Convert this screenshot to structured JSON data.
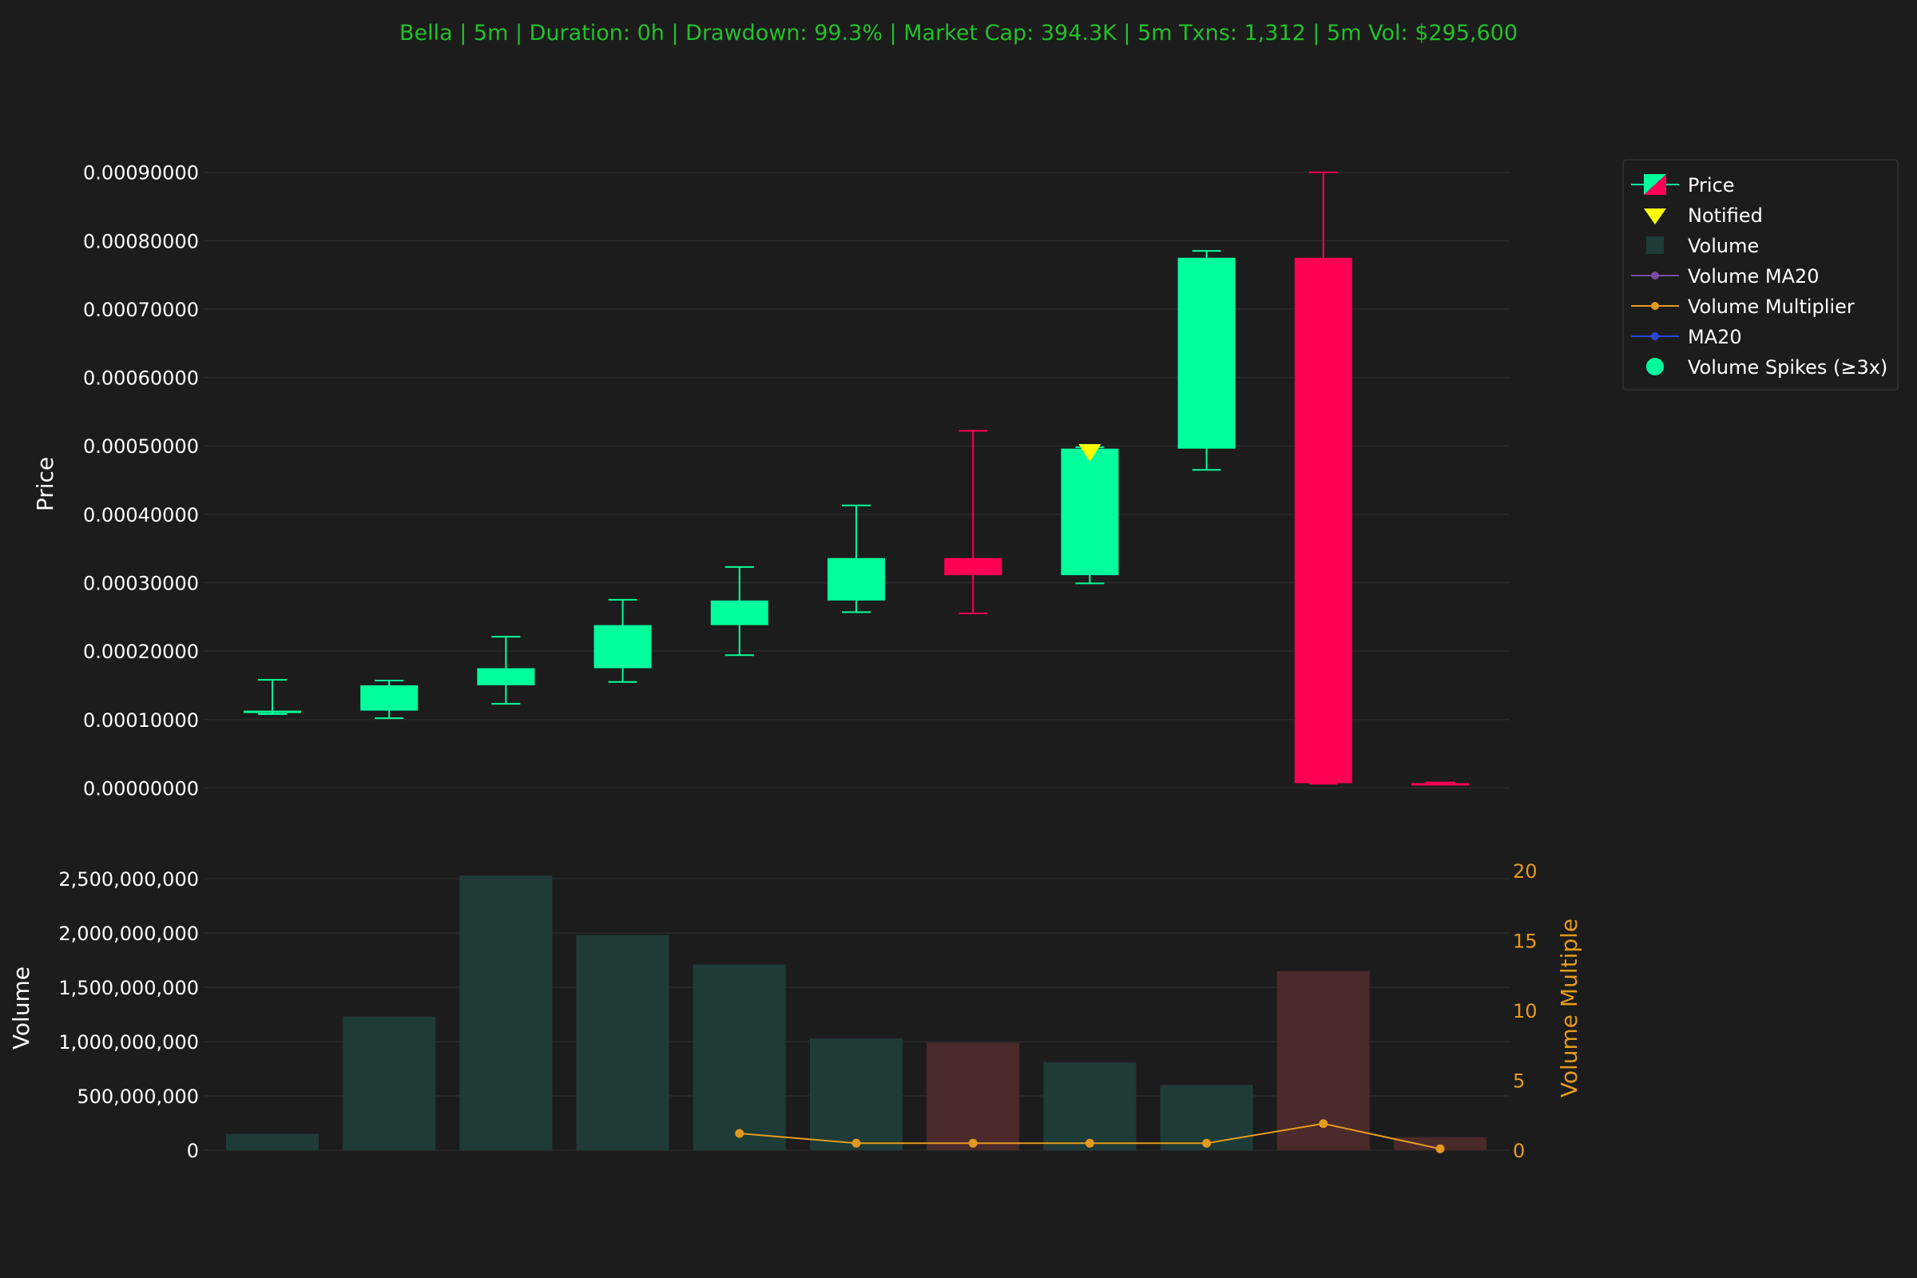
{
  "title": "Bella | 5m | Duration: 0h | Drawdown: 99.3% | Market Cap: 394.3K | 5m Txns: 1,312 | 5m Vol: $295,600",
  "colors": {
    "background": "#1c1c1c",
    "title": "#22c02a",
    "text": "#ffffff",
    "up": "#00ff9c",
    "down": "#ff0055",
    "volume_up": "#1f3b37",
    "volume_down": "#4a2a2a",
    "multiplier": "#e49a1e",
    "ma20": "#2a47d6",
    "volume_ma20": "#7a4aa0",
    "notified": "#ffff00",
    "grid": "#2a2a2a"
  },
  "chart_data": [
    {
      "type": "candlestick",
      "ylabel": "Price",
      "ylim": [
        -1e-05,
        0.00093
      ],
      "yticks": [
        0.0,
        0.0001,
        0.0002,
        0.0003,
        0.0004,
        0.0005,
        0.0006,
        0.0007,
        0.0008,
        0.0009
      ],
      "ytick_labels": [
        "0.00000000",
        "0.00010000",
        "0.00020000",
        "0.00030000",
        "0.00040000",
        "0.00050000",
        "0.00060000",
        "0.00070000",
        "0.00080000",
        "0.00090000"
      ],
      "grid": true,
      "candles": [
        {
          "open": 0.00011,
          "high": 0.000158,
          "low": 0.000108,
          "close": 0.000113
        },
        {
          "open": 0.000113,
          "high": 0.000157,
          "low": 0.000102,
          "close": 0.00015
        },
        {
          "open": 0.00015,
          "high": 0.000221,
          "low": 0.000123,
          "close": 0.000175
        },
        {
          "open": 0.000175,
          "high": 0.000275,
          "low": 0.000155,
          "close": 0.000238
        },
        {
          "open": 0.000238,
          "high": 0.000323,
          "low": 0.000194,
          "close": 0.000274
        },
        {
          "open": 0.000274,
          "high": 0.000413,
          "low": 0.000257,
          "close": 0.000336
        },
        {
          "open": 0.000336,
          "high": 0.000522,
          "low": 0.000255,
          "close": 0.000311
        },
        {
          "open": 0.000311,
          "high": 0.000498,
          "low": 0.000299,
          "close": 0.000496
        },
        {
          "open": 0.000496,
          "high": 0.000785,
          "low": 0.000465,
          "close": 0.000775
        },
        {
          "open": 0.000775,
          "high": 0.0009,
          "low": 6e-06,
          "close": 7e-06
        },
        {
          "open": 7e-06,
          "high": 8e-06,
          "low": 6e-06,
          "close": 6e-06
        }
      ],
      "notified": [
        {
          "index": 7,
          "price": 0.000498
        }
      ]
    },
    {
      "type": "bar",
      "ylabel": "Volume",
      "ylim": [
        0,
        2560000000
      ],
      "yticks": [
        0,
        500000000,
        1000000000,
        1500000000,
        2000000000,
        2500000000
      ],
      "ytick_labels": [
        "0",
        "500,000,000",
        "1,000,000,000",
        "1,500,000,000",
        "2,000,000,000",
        "2,500,000,000"
      ],
      "values": [
        150000000,
        1230000000,
        2530000000,
        1980000000,
        1710000000,
        1030000000,
        990000000,
        810000000,
        600000000,
        1650000000,
        120000000
      ],
      "directions": [
        "up",
        "up",
        "up",
        "up",
        "up",
        "up",
        "down",
        "up",
        "up",
        "down",
        "down"
      ],
      "secondary": {
        "type": "line",
        "name": "Volume Multiplier",
        "ylabel": "Volume Multiple",
        "ylim": [
          0,
          20
        ],
        "yticks": [
          0,
          5,
          10,
          15,
          20
        ],
        "ytick_labels": [
          "0",
          "5",
          "10",
          "15",
          "20"
        ],
        "points": [
          {
            "index": 4,
            "value": 1.2
          },
          {
            "index": 5,
            "value": 0.5
          },
          {
            "index": 6,
            "value": 0.5
          },
          {
            "index": 7,
            "value": 0.5
          },
          {
            "index": 8,
            "value": 0.5
          },
          {
            "index": 9,
            "value": 1.9
          },
          {
            "index": 10,
            "value": 0.1
          }
        ]
      }
    }
  ],
  "legend": {
    "placement": "top-right",
    "items": [
      {
        "label": "Price",
        "icon": "candle-icon"
      },
      {
        "label": "Notified",
        "icon": "triangle-down-icon"
      },
      {
        "label": "Volume",
        "icon": "square-icon"
      },
      {
        "label": "Volume MA20",
        "icon": "line-dot-icon"
      },
      {
        "label": "Volume Multiplier",
        "icon": "line-dot-icon"
      },
      {
        "label": "MA20",
        "icon": "line-dot-icon"
      },
      {
        "label": "Volume Spikes (≥3x)",
        "icon": "circle-icon"
      }
    ]
  }
}
